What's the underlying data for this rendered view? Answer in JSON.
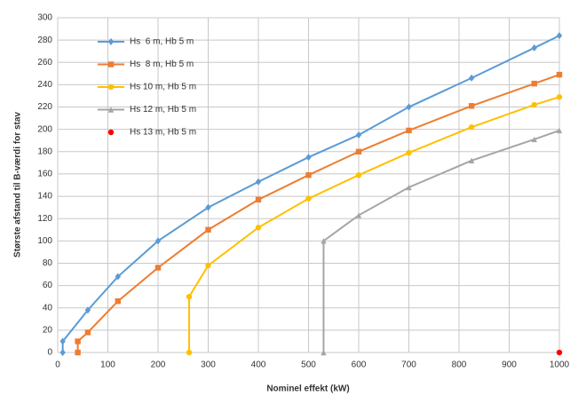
{
  "chart_data": {
    "type": "line",
    "x_label": "Nominel effekt (kW)",
    "y_label": "Største afstand til B-værdi for stav",
    "xlim": [
      0,
      1000
    ],
    "xticks": [
      0,
      100,
      200,
      300,
      400,
      500,
      600,
      700,
      800,
      900,
      1000
    ],
    "ylim": [
      0,
      300
    ],
    "yticks": [
      0,
      20,
      40,
      60,
      80,
      100,
      120,
      140,
      160,
      180,
      200,
      220,
      240,
      260,
      280,
      300
    ],
    "grid": true,
    "legend": "upper-left",
    "series": [
      {
        "name": "Hs  6 m, Hb 5 m",
        "color": "#5b9bd5",
        "marker": "diamond",
        "line": true,
        "x": [
          10,
          10,
          60,
          120,
          200,
          300,
          400,
          500,
          600,
          700,
          825,
          950,
          1000
        ],
        "values": [
          0,
          10,
          38,
          68,
          100,
          130,
          153,
          175,
          195,
          220,
          246,
          273,
          284
        ]
      },
      {
        "name": "Hs  8 m, Hb 5 m",
        "color": "#ed7d31",
        "marker": "square",
        "line": true,
        "x": [
          40,
          40,
          60,
          120,
          200,
          300,
          400,
          500,
          600,
          700,
          825,
          950,
          1000
        ],
        "values": [
          0,
          10,
          18,
          46,
          76,
          110,
          137,
          159,
          180,
          199,
          221,
          241,
          249
        ]
      },
      {
        "name": "Hs 10 m, Hb 5 m",
        "color": "#ffc000",
        "marker": "circle",
        "line": true,
        "x": [
          262,
          262,
          300,
          400,
          500,
          600,
          700,
          825,
          950,
          1000
        ],
        "values": [
          0,
          50,
          78,
          112,
          138,
          159,
          179,
          202,
          222,
          229
        ]
      },
      {
        "name": "Hs 12 m, Hb 5 m",
        "color": "#a5a5a5",
        "marker": "triangle",
        "line": true,
        "x": [
          530,
          530,
          600,
          700,
          825,
          950,
          1000
        ],
        "values": [
          0,
          100,
          123,
          148,
          172,
          191,
          199
        ]
      },
      {
        "name": "Hs 13 m, Hb 5 m",
        "color": "#ff0000",
        "marker": "circle",
        "line": false,
        "x": [
          1000
        ],
        "values": [
          0
        ]
      }
    ]
  }
}
